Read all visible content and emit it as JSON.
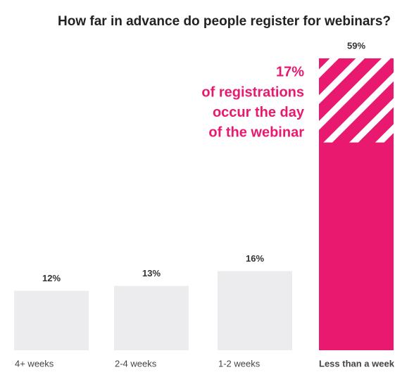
{
  "chart_data": {
    "type": "bar",
    "title": "How far in advance do people register for webinars?",
    "categories": [
      "4+ weeks",
      "2-4 weeks",
      "1-2 weeks",
      "Less than a week"
    ],
    "values": [
      12,
      13,
      16,
      59
    ],
    "value_labels": [
      "12%",
      "13%",
      "16%",
      "59%"
    ],
    "colors": [
      "#ececee",
      "#ececee",
      "#ececee",
      "#e8196f"
    ],
    "highlight": {
      "value": 17,
      "label": "17%",
      "text": [
        "of registrations",
        "occur the day",
        "of the webinar"
      ],
      "color": "#e8196f"
    }
  }
}
